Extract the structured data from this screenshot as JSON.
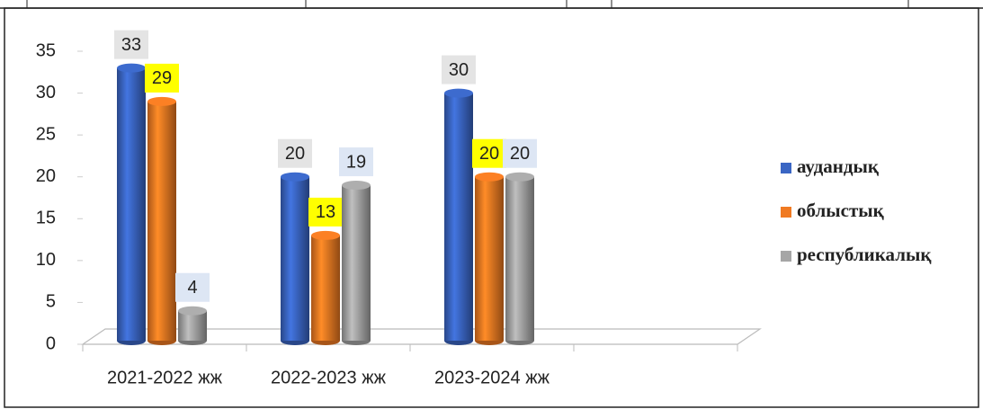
{
  "chart_data": {
    "type": "bar",
    "categories": [
      "2021-2022 жж",
      "2022-2023 жж",
      "2023-2024 жж",
      null
    ],
    "series": [
      {
        "name": "аудандық",
        "color": "#3a66c4",
        "label_background": "#e4e4e4",
        "values": [
          33,
          20,
          30,
          null
        ]
      },
      {
        "name": "облыстық",
        "color": "#f07a22",
        "label_background": "#ffff00",
        "values": [
          29,
          13,
          20,
          null
        ]
      },
      {
        "name": "республикалық",
        "color": "#a6a6a6",
        "label_background": "#dde6f4",
        "values": [
          4,
          19,
          20,
          null
        ]
      }
    ],
    "ylim": [
      0,
      35
    ],
    "yticks": [
      0,
      5,
      10,
      15,
      20,
      25,
      30,
      35
    ],
    "legend": "right"
  }
}
